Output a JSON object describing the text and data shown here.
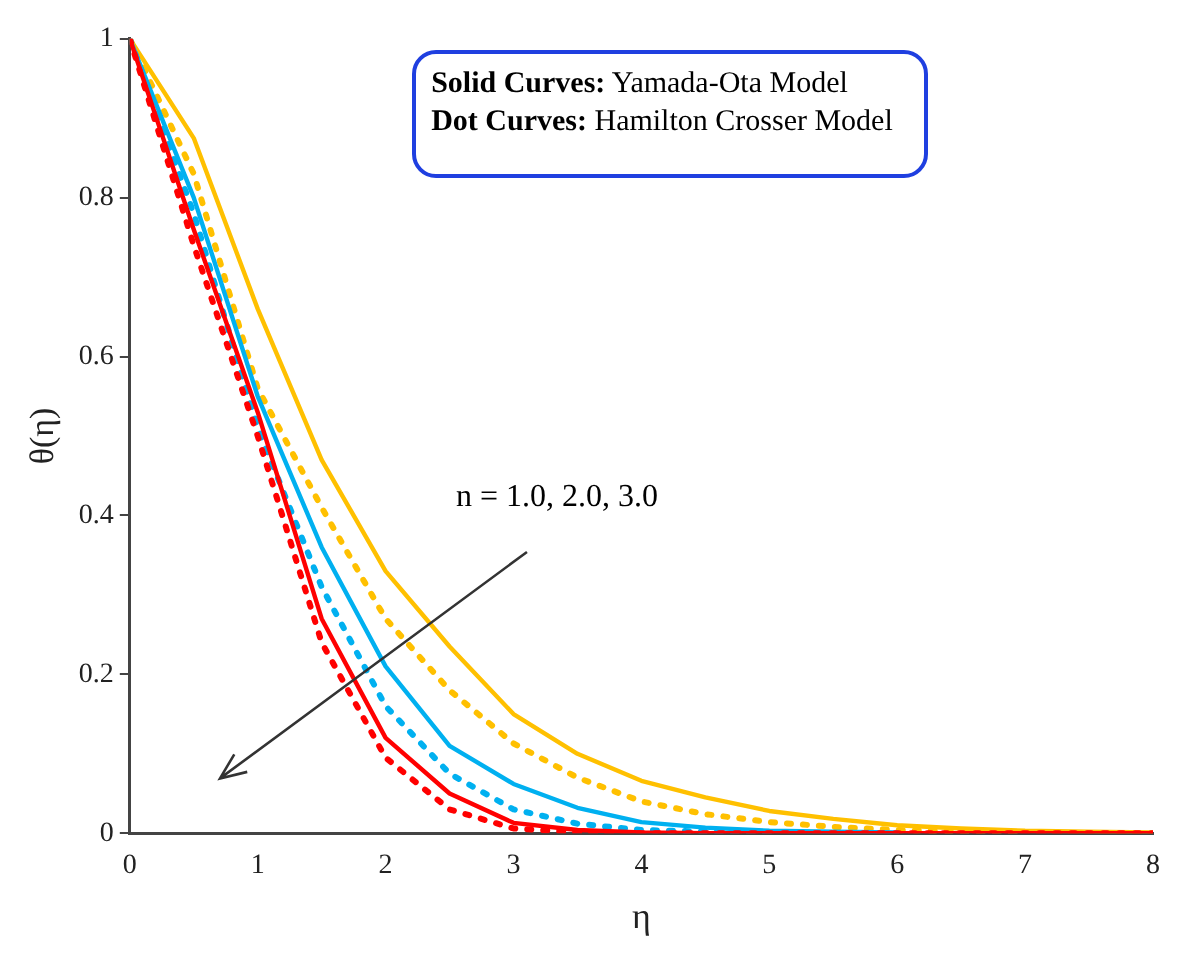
{
  "chart_data": {
    "type": "line",
    "xlabel": "η",
    "ylabel": "θ(η)",
    "x": [
      0,
      0.5,
      1,
      1.5,
      2,
      2.5,
      3,
      3.5,
      4,
      4.5,
      5,
      5.5,
      6,
      6.5,
      7,
      7.5,
      8
    ],
    "xlim": [
      0,
      8
    ],
    "xticks": [
      0,
      1,
      2,
      3,
      4,
      5,
      6,
      7,
      8
    ],
    "ylim": [
      0,
      1
    ],
    "yticks": [
      0,
      0.2,
      0.4,
      0.6,
      0.8,
      1
    ],
    "grid": false,
    "legend": false,
    "marker": "none",
    "series": [
      {
        "color": "#ffc000",
        "line_style": "solid",
        "values": [
          1,
          0.875,
          0.66,
          0.47,
          0.33,
          0.235,
          0.15,
          0.1,
          0.066,
          0.045,
          0.028,
          0.018,
          0.01,
          0.006,
          0.003,
          0.002,
          0.001
        ]
      },
      {
        "color": "#ffc000",
        "line_style": "dotted",
        "values": [
          1,
          0.83,
          0.56,
          0.41,
          0.27,
          0.18,
          0.113,
          0.07,
          0.04,
          0.024,
          0.014,
          0.008,
          0.004,
          0.002,
          0.001,
          null,
          null
        ]
      },
      {
        "color": "#00b0f0",
        "line_style": "solid",
        "values": [
          1,
          0.8,
          0.55,
          0.36,
          0.21,
          0.11,
          0.062,
          0.032,
          0.014,
          0.007,
          0.003,
          0.002,
          0.001,
          null,
          null,
          null,
          null
        ]
      },
      {
        "color": "#00b0f0",
        "line_style": "dotted",
        "values": [
          1,
          0.78,
          0.51,
          0.31,
          0.16,
          0.075,
          0.03,
          0.012,
          0.004,
          0.002,
          0.001,
          null,
          null,
          null,
          null,
          null,
          null
        ]
      },
      {
        "color": "#ff0000",
        "line_style": "solid",
        "values": [
          1,
          0.76,
          0.53,
          0.27,
          0.12,
          0.05,
          0.013,
          0.004,
          0.001,
          0,
          0,
          0,
          0,
          0,
          0,
          0,
          0
        ]
      },
      {
        "color": "#ff0000",
        "line_style": "dotted",
        "values": [
          1,
          0.74,
          0.5,
          0.24,
          0.095,
          0.03,
          0.006,
          0.001,
          0,
          0,
          0,
          0,
          0,
          0,
          0,
          0,
          0
        ]
      }
    ],
    "annotations": [
      "Solid Curves: Yamada-Ota Model",
      "Dot Curves: Hamilton Crosser Model",
      "n = 1.0, 2.0, 3.0"
    ]
  }
}
